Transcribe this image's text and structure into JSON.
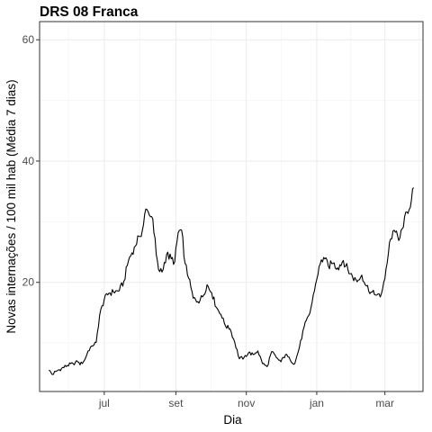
{
  "chart_data": {
    "type": "line",
    "title": "DRS 08 Franca",
    "xlabel": "Dia",
    "ylabel": "Novas internações / 100 mil hab (Média 7 dias)",
    "x_ticks": [
      "jul",
      "set",
      "nov",
      "jan",
      "mar"
    ],
    "x_tick_dates": [
      "2020-07-01",
      "2020-09-01",
      "2020-11-01",
      "2021-01-01",
      "2021-03-01"
    ],
    "xlim": [
      "2020-05-06",
      "2021-04-03"
    ],
    "y_ticks": [
      20,
      40,
      60
    ],
    "ylim": [
      2,
      63
    ],
    "grid": true,
    "series": [
      {
        "color": "#000000",
        "x": [
          "2020-05-14",
          "2020-05-17",
          "2020-05-20",
          "2020-05-25",
          "2020-05-30",
          "2020-06-04",
          "2020-06-08",
          "2020-06-10",
          "2020-06-14",
          "2020-06-17",
          "2020-06-20",
          "2020-06-24",
          "2020-06-27",
          "2020-07-01",
          "2020-07-05",
          "2020-07-09",
          "2020-07-14",
          "2020-07-18",
          "2020-07-22",
          "2020-07-27",
          "2020-07-31",
          "2020-08-03",
          "2020-08-06",
          "2020-08-09",
          "2020-08-12",
          "2020-08-15",
          "2020-08-17",
          "2020-08-20",
          "2020-08-24",
          "2020-08-28",
          "2020-08-31",
          "2020-09-03",
          "2020-09-06",
          "2020-09-09",
          "2020-09-12",
          "2020-09-16",
          "2020-09-20",
          "2020-09-24",
          "2020-09-28",
          "2020-10-02",
          "2020-10-06",
          "2020-10-10",
          "2020-10-14",
          "2020-10-18",
          "2020-10-22",
          "2020-10-26",
          "2020-10-30",
          "2020-11-03",
          "2020-11-07",
          "2020-11-11",
          "2020-11-15",
          "2020-11-19",
          "2020-11-23",
          "2020-11-27",
          "2020-12-01",
          "2020-12-05",
          "2020-12-09",
          "2020-12-13",
          "2020-12-17",
          "2020-12-21",
          "2020-12-26",
          "2020-12-30",
          "2021-01-03",
          "2021-01-07",
          "2021-01-11",
          "2021-01-15",
          "2021-01-19",
          "2021-01-24",
          "2021-01-28",
          "2021-02-01",
          "2021-02-05",
          "2021-02-09",
          "2021-02-13",
          "2021-02-17",
          "2021-02-21",
          "2021-02-25",
          "2021-03-01",
          "2021-03-05",
          "2021-03-09",
          "2021-03-13",
          "2021-03-17",
          "2021-03-20",
          "2021-03-24",
          "2021-03-26"
        ],
        "values": [
          5.5,
          4.8,
          5.3,
          5.8,
          6.3,
          6.6,
          6.9,
          6.4,
          7.2,
          8.7,
          9.5,
          10.1,
          14.6,
          17.2,
          18.2,
          18.4,
          18.6,
          20.2,
          23.6,
          25.8,
          27.6,
          28.6,
          32.1,
          31.1,
          30.5,
          24.6,
          22.1,
          21.7,
          24.6,
          23.9,
          23.4,
          28.2,
          28.6,
          23.1,
          20.7,
          17.4,
          16.8,
          17.6,
          19.6,
          18.3,
          15.9,
          14.7,
          12.8,
          12.3,
          10.1,
          7.4,
          7.6,
          8.4,
          8.1,
          8.7,
          6.6,
          6.1,
          8.6,
          7.6,
          6.9,
          8.1,
          7.2,
          6.6,
          9.3,
          12.6,
          14.9,
          18.6,
          22.6,
          24.1,
          22.7,
          23.1,
          22.4,
          23.6,
          22.1,
          20.9,
          20.1,
          21.2,
          19.4,
          18.4,
          17.9,
          17.6,
          20.6,
          26.6,
          28.6,
          26.9,
          29.1,
          31.6,
          33.6,
          35.6
        ]
      }
    ]
  }
}
